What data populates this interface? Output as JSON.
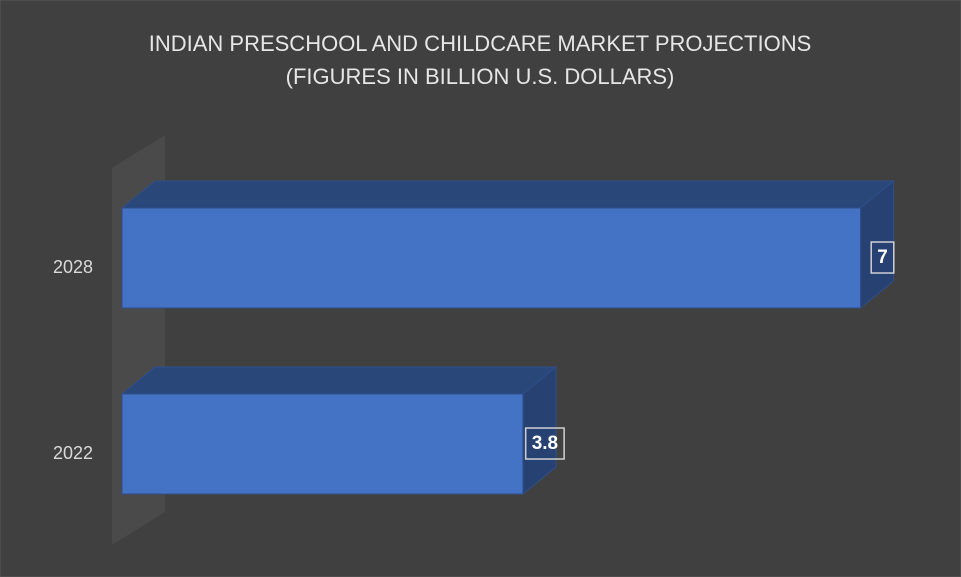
{
  "chart_data": {
    "type": "bar",
    "orientation": "horizontal",
    "style": "3d",
    "title": "INDIAN PRESCHOOL AND CHILDCARE MARKET PROJECTIONS",
    "subtitle": "(FIGURES IN BILLION U.S. DOLLARS)",
    "categories": [
      "2028",
      "2022"
    ],
    "values": [
      7,
      3.8
    ],
    "color": "#4472c4"
  }
}
